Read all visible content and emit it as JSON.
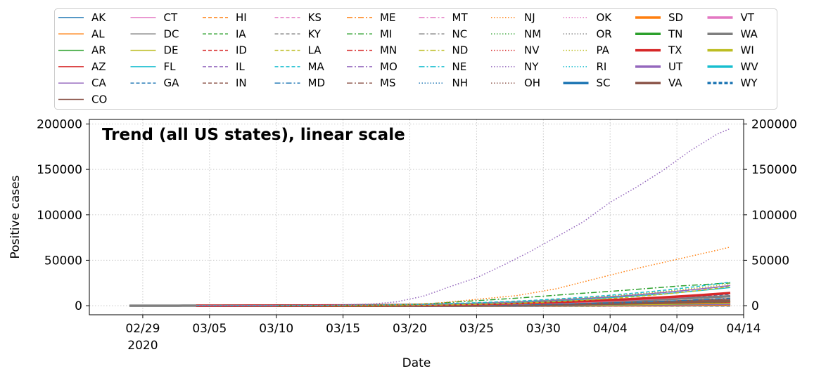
{
  "chart_data": {
    "type": "line",
    "title": "Trend (all US states), linear scale",
    "xlabel": "Date",
    "ylabel": "Positive cases",
    "x_range": [
      "2020-02-25",
      "2020-04-14"
    ],
    "y_range": [
      -10000,
      205000
    ],
    "x_ticks": [
      {
        "date": "2020-02-29",
        "label": "02/29"
      },
      {
        "date": "2020-03-05",
        "label": "03/05"
      },
      {
        "date": "2020-03-10",
        "label": "03/10"
      },
      {
        "date": "2020-03-15",
        "label": "03/15"
      },
      {
        "date": "2020-03-20",
        "label": "03/20"
      },
      {
        "date": "2020-03-25",
        "label": "03/25"
      },
      {
        "date": "2020-03-30",
        "label": "03/30"
      },
      {
        "date": "2020-04-04",
        "label": "04/04"
      },
      {
        "date": "2020-04-09",
        "label": "04/09"
      },
      {
        "date": "2020-04-14",
        "label": "04/14"
      }
    ],
    "x_year_label": "2020",
    "y_ticks": [
      0,
      50000,
      100000,
      150000,
      200000
    ],
    "grid": true,
    "grid_style": "dotted",
    "right_axis_mirror": true,
    "legend_placement": "top (above plot, 10 columns)",
    "series": [
      {
        "name": "AK",
        "color": "#1f77b4",
        "dash": "solid",
        "width": 1.5,
        "start": "2020-03-10",
        "end": "2020-04-13",
        "final": 270
      },
      {
        "name": "AL",
        "color": "#ff7f0e",
        "dash": "solid",
        "width": 1.5,
        "start": "2020-03-10",
        "end": "2020-04-13",
        "final": 3700
      },
      {
        "name": "AR",
        "color": "#2ca02c",
        "dash": "solid",
        "width": 1.5,
        "start": "2020-03-10",
        "end": "2020-04-13",
        "final": 1400
      },
      {
        "name": "AZ",
        "color": "#d62728",
        "dash": "solid",
        "width": 1.5,
        "start": "2020-03-04",
        "end": "2020-04-13",
        "final": 3800
      },
      {
        "name": "CA",
        "color": "#9467bd",
        "dash": "solid",
        "width": 1.5,
        "start": "2020-03-04",
        "end": "2020-04-13",
        "final": 22300
      },
      {
        "name": "CO",
        "color": "#8c564b",
        "dash": "solid",
        "width": 1.5,
        "start": "2020-03-04",
        "end": "2020-04-13",
        "final": 7700
      },
      {
        "name": "CT",
        "color": "#e377c2",
        "dash": "solid",
        "width": 1.5,
        "start": "2020-03-10",
        "end": "2020-04-13",
        "final": 13400
      },
      {
        "name": "DC",
        "color": "#7f7f7f",
        "dash": "solid",
        "width": 1.5,
        "start": "2020-03-10",
        "end": "2020-04-13",
        "final": 1900
      },
      {
        "name": "DE",
        "color": "#bcbd22",
        "dash": "solid",
        "width": 1.5,
        "start": "2020-03-10",
        "end": "2020-04-13",
        "final": 1600
      },
      {
        "name": "FL",
        "color": "#17becf",
        "dash": "solid",
        "width": 1.5,
        "start": "2020-03-04",
        "end": "2020-04-13",
        "final": 20000
      },
      {
        "name": "GA",
        "color": "#1f77b4",
        "dash": "dashed",
        "width": 1.5,
        "start": "2020-03-04",
        "end": "2020-04-13",
        "final": 12600
      },
      {
        "name": "HI",
        "color": "#ff7f0e",
        "dash": "dashed",
        "width": 1.5,
        "start": "2020-03-10",
        "end": "2020-04-13",
        "final": 500
      },
      {
        "name": "IA",
        "color": "#2ca02c",
        "dash": "dashed",
        "width": 1.5,
        "start": "2020-03-10",
        "end": "2020-04-13",
        "final": 1700
      },
      {
        "name": "ID",
        "color": "#d62728",
        "dash": "dashed",
        "width": 1.5,
        "start": "2020-03-10",
        "end": "2020-04-13",
        "final": 1400
      },
      {
        "name": "IL",
        "color": "#9467bd",
        "dash": "dashed",
        "width": 1.5,
        "start": "2020-03-04",
        "end": "2020-04-13",
        "final": 22000
      },
      {
        "name": "IN",
        "color": "#8c564b",
        "dash": "dashed",
        "width": 1.5,
        "start": "2020-03-10",
        "end": "2020-04-13",
        "final": 7900
      },
      {
        "name": "KS",
        "color": "#e377c2",
        "dash": "dashed",
        "width": 1.5,
        "start": "2020-03-10",
        "end": "2020-04-13",
        "final": 1300
      },
      {
        "name": "KY",
        "color": "#7f7f7f",
        "dash": "dashed",
        "width": 1.5,
        "start": "2020-03-10",
        "end": "2020-04-13",
        "final": 1900
      },
      {
        "name": "LA",
        "color": "#bcbd22",
        "dash": "dashed",
        "width": 1.5,
        "start": "2020-03-10",
        "end": "2020-04-13",
        "final": 21000
      },
      {
        "name": "MA",
        "color": "#17becf",
        "dash": "dashed",
        "width": 1.5,
        "start": "2020-03-04",
        "end": "2020-04-13",
        "final": 26000
      },
      {
        "name": "MD",
        "color": "#1f77b4",
        "dash": "dashdot",
        "width": 1.5,
        "start": "2020-03-10",
        "end": "2020-04-13",
        "final": 8200
      },
      {
        "name": "ME",
        "color": "#ff7f0e",
        "dash": "dashdot",
        "width": 1.5,
        "start": "2020-03-10",
        "end": "2020-04-13",
        "final": 630
      },
      {
        "name": "MI",
        "color": "#2ca02c",
        "dash": "dashdot",
        "width": 1.5,
        "start": "2020-03-10",
        "end": "2020-04-13",
        "final": 25000
      },
      {
        "name": "MN",
        "color": "#d62728",
        "dash": "dashdot",
        "width": 1.5,
        "start": "2020-03-10",
        "end": "2020-04-13",
        "final": 1600
      },
      {
        "name": "MO",
        "color": "#9467bd",
        "dash": "dashdot",
        "width": 1.5,
        "start": "2020-03-10",
        "end": "2020-04-13",
        "final": 4400
      },
      {
        "name": "MS",
        "color": "#8c564b",
        "dash": "dashdot",
        "width": 1.5,
        "start": "2020-03-10",
        "end": "2020-04-13",
        "final": 3000
      },
      {
        "name": "MT",
        "color": "#e377c2",
        "dash": "dashdot",
        "width": 1.5,
        "start": "2020-03-10",
        "end": "2020-04-13",
        "final": 390
      },
      {
        "name": "NC",
        "color": "#7f7f7f",
        "dash": "dashdot",
        "width": 1.5,
        "start": "2020-03-04",
        "end": "2020-04-13",
        "final": 4500
      },
      {
        "name": "ND",
        "color": "#bcbd22",
        "dash": "dashdot",
        "width": 1.5,
        "start": "2020-03-10",
        "end": "2020-04-13",
        "final": 330
      },
      {
        "name": "NE",
        "color": "#17becf",
        "dash": "dashdot",
        "width": 1.5,
        "start": "2020-03-10",
        "end": "2020-04-13",
        "final": 800
      },
      {
        "name": "NH",
        "color": "#1f77b4",
        "dash": "dotted",
        "width": 1.5,
        "start": "2020-03-04",
        "end": "2020-04-13",
        "final": 1000
      },
      {
        "name": "NJ",
        "color": "#ff7f0e",
        "dash": "dotted",
        "width": 1.5,
        "start": "2020-03-04",
        "end": "2020-04-13",
        "final": 64500
      },
      {
        "name": "NM",
        "color": "#2ca02c",
        "dash": "dotted",
        "width": 1.5,
        "start": "2020-03-10",
        "end": "2020-04-13",
        "final": 1300
      },
      {
        "name": "NV",
        "color": "#d62728",
        "dash": "dotted",
        "width": 1.5,
        "start": "2020-03-10",
        "end": "2020-04-13",
        "final": 2800
      },
      {
        "name": "NY",
        "color": "#9467bd",
        "dash": "dotted",
        "width": 1.5,
        "start": "2020-03-04",
        "end": "2020-04-13",
        "final": 195000
      },
      {
        "name": "OH",
        "color": "#8c564b",
        "dash": "dotted",
        "width": 1.5,
        "start": "2020-03-10",
        "end": "2020-04-13",
        "final": 6600
      },
      {
        "name": "OK",
        "color": "#e377c2",
        "dash": "dotted",
        "width": 1.5,
        "start": "2020-03-10",
        "end": "2020-04-13",
        "final": 2000
      },
      {
        "name": "OR",
        "color": "#7f7f7f",
        "dash": "dotted",
        "width": 1.5,
        "start": "2020-03-04",
        "end": "2020-04-13",
        "final": 1500
      },
      {
        "name": "PA",
        "color": "#bcbd22",
        "dash": "dotted",
        "width": 1.5,
        "start": "2020-03-04",
        "end": "2020-04-13",
        "final": 24000
      },
      {
        "name": "RI",
        "color": "#17becf",
        "dash": "dotted",
        "width": 1.5,
        "start": "2020-03-04",
        "end": "2020-04-13",
        "final": 2900
      },
      {
        "name": "SC",
        "color": "#1f77b4",
        "dash": "solid",
        "width": 3.5,
        "start": "2020-03-10",
        "end": "2020-04-13",
        "final": 3300
      },
      {
        "name": "SD",
        "color": "#ff7f0e",
        "dash": "solid",
        "width": 3.5,
        "start": "2020-03-10",
        "end": "2020-04-13",
        "final": 870
      },
      {
        "name": "TN",
        "color": "#2ca02c",
        "dash": "solid",
        "width": 3.5,
        "start": "2020-03-06",
        "end": "2020-04-13",
        "final": 5300
      },
      {
        "name": "TX",
        "color": "#d62728",
        "dash": "solid",
        "width": 3.5,
        "start": "2020-03-04",
        "end": "2020-04-13",
        "final": 14000
      },
      {
        "name": "UT",
        "color": "#9467bd",
        "dash": "solid",
        "width": 3.5,
        "start": "2020-03-10",
        "end": "2020-04-13",
        "final": 2300
      },
      {
        "name": "VA",
        "color": "#8c564b",
        "dash": "solid",
        "width": 3.5,
        "start": "2020-03-10",
        "end": "2020-04-13",
        "final": 5700
      },
      {
        "name": "VT",
        "color": "#e377c2",
        "dash": "solid",
        "width": 3.5,
        "start": "2020-03-10",
        "end": "2020-04-13",
        "final": 750
      },
      {
        "name": "WA",
        "color": "#7f7f7f",
        "dash": "solid",
        "width": 3.5,
        "start": "2020-02-28",
        "end": "2020-04-13",
        "final": 10400
      },
      {
        "name": "WI",
        "color": "#bcbd22",
        "dash": "solid",
        "width": 3.5,
        "start": "2020-03-04",
        "end": "2020-04-13",
        "final": 3400
      },
      {
        "name": "WV",
        "color": "#17becf",
        "dash": "solid",
        "width": 3.5,
        "start": "2020-03-10",
        "end": "2020-04-13",
        "final": 640
      },
      {
        "name": "WY",
        "color": "#1f77b4",
        "dash": "dashed",
        "width": 3.5,
        "start": "2020-03-10",
        "end": "2020-04-13",
        "final": 280
      }
    ],
    "highlighted_paths": {
      "NY": [
        [
          "2020-03-04",
          0
        ],
        [
          "2020-03-14",
          600
        ],
        [
          "2020-03-17",
          1700
        ],
        [
          "2020-03-19",
          4200
        ],
        [
          "2020-03-21",
          10400
        ],
        [
          "2020-03-23",
          20900
        ],
        [
          "2020-03-25",
          30800
        ],
        [
          "2020-03-27",
          44600
        ],
        [
          "2020-03-29",
          59500
        ],
        [
          "2020-03-31",
          75800
        ],
        [
          "2020-04-02",
          92400
        ],
        [
          "2020-04-04",
          113700
        ],
        [
          "2020-04-06",
          130700
        ],
        [
          "2020-04-08",
          149300
        ],
        [
          "2020-04-10",
          170500
        ],
        [
          "2020-04-12",
          188700
        ],
        [
          "2020-04-13",
          195000
        ]
      ],
      "NJ": [
        [
          "2020-03-04",
          0
        ],
        [
          "2020-03-16",
          180
        ],
        [
          "2020-03-19",
          900
        ],
        [
          "2020-03-22",
          2800
        ],
        [
          "2020-03-25",
          6900
        ],
        [
          "2020-03-28",
          11100
        ],
        [
          "2020-03-31",
          18700
        ],
        [
          "2020-04-03",
          29900
        ],
        [
          "2020-04-06",
          41000
        ],
        [
          "2020-04-09",
          51000
        ],
        [
          "2020-04-12",
          61000
        ],
        [
          "2020-04-13",
          64500
        ]
      ],
      "MI": [
        [
          "2020-03-10",
          0
        ],
        [
          "2020-03-18",
          500
        ],
        [
          "2020-03-21",
          1800
        ],
        [
          "2020-03-25",
          5500
        ],
        [
          "2020-03-28",
          8300
        ],
        [
          "2020-04-01",
          12700
        ],
        [
          "2020-04-05",
          16800
        ],
        [
          "2020-04-09",
          21500
        ],
        [
          "2020-04-13",
          25000
        ]
      ]
    }
  }
}
